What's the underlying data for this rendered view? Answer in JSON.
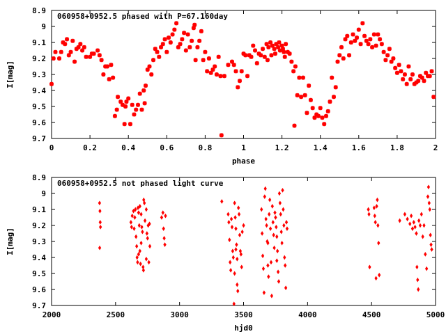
{
  "chart_data": [
    {
      "type": "scatter",
      "title": "060958+0952.5 phased with P=67.160day",
      "xlabel": "phase",
      "ylabel": "I[mag]",
      "xlim": [
        0,
        2
      ],
      "ylim": [
        8.9,
        9.7
      ],
      "y_inverted": true,
      "x_ticks": [
        "0",
        "0.2",
        "0.4",
        "0.6",
        "0.8",
        "1",
        "1.2",
        "1.4",
        "1.6",
        "1.8",
        "2"
      ],
      "y_ticks": [
        "8.9",
        "9",
        "9.1",
        "9.2",
        "9.3",
        "9.4",
        "9.5",
        "9.6",
        "9.7"
      ],
      "marker_color": "#ff0000",
      "points": [
        [
          0.0,
          9.36
        ],
        [
          0.01,
          9.2
        ],
        [
          0.02,
          9.16
        ],
        [
          0.04,
          9.2
        ],
        [
          0.05,
          9.16
        ],
        [
          0.06,
          9.1
        ],
        [
          0.07,
          9.11
        ],
        [
          0.08,
          9.08
        ],
        [
          0.09,
          9.18
        ],
        [
          0.1,
          9.16
        ],
        [
          0.11,
          9.09
        ],
        [
          0.12,
          9.22
        ],
        [
          0.13,
          9.14
        ],
        [
          0.14,
          9.13
        ],
        [
          0.15,
          9.11
        ],
        [
          0.16,
          9.15
        ],
        [
          0.17,
          9.13
        ],
        [
          0.18,
          9.19
        ],
        [
          0.2,
          9.19
        ],
        [
          0.21,
          9.17
        ],
        [
          0.22,
          9.17
        ],
        [
          0.24,
          9.15
        ],
        [
          0.25,
          9.18
        ],
        [
          0.26,
          9.21
        ],
        [
          0.27,
          9.3
        ],
        [
          0.28,
          9.25
        ],
        [
          0.29,
          9.25
        ],
        [
          0.3,
          9.33
        ],
        [
          0.31,
          9.24
        ],
        [
          0.32,
          9.32
        ],
        [
          0.33,
          9.56
        ],
        [
          0.34,
          9.52
        ],
        [
          0.345,
          9.44
        ],
        [
          0.36,
          9.47
        ],
        [
          0.37,
          9.49
        ],
        [
          0.38,
          9.61
        ],
        [
          0.385,
          9.5
        ],
        [
          0.39,
          9.47
        ],
        [
          0.4,
          9.45
        ],
        [
          0.41,
          9.61
        ],
        [
          0.42,
          9.49
        ],
        [
          0.43,
          9.55
        ],
        [
          0.44,
          9.52
        ],
        [
          0.45,
          9.49
        ],
        [
          0.46,
          9.42
        ],
        [
          0.47,
          9.52
        ],
        [
          0.48,
          9.4
        ],
        [
          0.485,
          9.48
        ],
        [
          0.49,
          9.37
        ],
        [
          0.5,
          9.27
        ],
        [
          0.51,
          9.25
        ],
        [
          0.52,
          9.3
        ],
        [
          0.53,
          9.21
        ],
        [
          0.54,
          9.14
        ],
        [
          0.55,
          9.16
        ],
        [
          0.56,
          9.19
        ],
        [
          0.57,
          9.13
        ],
        [
          0.58,
          9.11
        ],
        [
          0.59,
          9.08
        ],
        [
          0.6,
          9.16
        ],
        [
          0.61,
          9.07
        ],
        [
          0.62,
          9.1
        ],
        [
          0.63,
          9.05
        ],
        [
          0.64,
          9.02
        ],
        [
          0.65,
          8.98
        ],
        [
          0.66,
          9.13
        ],
        [
          0.67,
          9.11
        ],
        [
          0.68,
          9.08
        ],
        [
          0.69,
          9.04
        ],
        [
          0.7,
          9.15
        ],
        [
          0.71,
          9.05
        ],
        [
          0.72,
          9.13
        ],
        [
          0.73,
          9.09
        ],
        [
          0.74,
          9.01
        ],
        [
          0.745,
          8.99
        ],
        [
          0.75,
          9.21
        ],
        [
          0.76,
          9.13
        ],
        [
          0.77,
          9.09
        ],
        [
          0.78,
          9.03
        ],
        [
          0.79,
          9.21
        ],
        [
          0.8,
          9.16
        ],
        [
          0.81,
          9.28
        ],
        [
          0.82,
          9.2
        ],
        [
          0.83,
          9.29
        ],
        [
          0.84,
          9.27
        ],
        [
          0.85,
          9.25
        ],
        [
          0.86,
          9.3
        ],
        [
          0.87,
          9.19
        ],
        [
          0.88,
          9.31
        ],
        [
          0.885,
          9.68
        ],
        [
          0.9,
          9.31
        ],
        [
          0.92,
          9.24
        ],
        [
          0.94,
          9.22
        ],
        [
          0.95,
          9.24
        ],
        [
          0.96,
          9.28
        ],
        [
          0.97,
          9.38
        ],
        [
          0.98,
          9.34
        ],
        [
          0.99,
          9.28
        ],
        [
          1.0,
          9.17
        ],
        [
          1.01,
          9.18
        ],
        [
          1.02,
          9.31
        ],
        [
          1.03,
          9.18
        ],
        [
          1.04,
          9.19
        ],
        [
          1.05,
          9.12
        ],
        [
          1.06,
          9.15
        ],
        [
          1.07,
          9.23
        ],
        [
          1.08,
          9.17
        ],
        [
          1.09,
          9.18
        ],
        [
          1.1,
          9.14
        ],
        [
          1.11,
          9.19
        ],
        [
          1.12,
          9.11
        ],
        [
          1.13,
          9.13
        ],
        [
          1.14,
          9.1
        ],
        [
          1.15,
          9.12
        ],
        [
          1.16,
          9.14
        ],
        [
          1.17,
          9.11
        ],
        [
          1.18,
          9.13
        ],
        [
          1.19,
          9.15
        ],
        [
          1.2,
          9.12
        ],
        [
          1.21,
          9.16
        ],
        [
          1.125,
          9.21
        ],
        [
          1.145,
          9.18
        ],
        [
          1.165,
          9.17
        ],
        [
          1.185,
          9.1
        ],
        [
          1.205,
          9.14
        ],
        [
          1.215,
          9.19
        ],
        [
          1.22,
          9.11
        ],
        [
          1.23,
          9.16
        ],
        [
          1.24,
          9.17
        ],
        [
          1.25,
          9.22
        ],
        [
          1.26,
          9.28
        ],
        [
          1.265,
          9.62
        ],
        [
          1.27,
          9.25
        ],
        [
          1.28,
          9.43
        ],
        [
          1.29,
          9.32
        ],
        [
          1.3,
          9.44
        ],
        [
          1.31,
          9.32
        ],
        [
          1.32,
          9.43
        ],
        [
          1.33,
          9.54
        ],
        [
          1.34,
          9.37
        ],
        [
          1.35,
          9.46
        ],
        [
          1.36,
          9.51
        ],
        [
          1.37,
          9.57
        ],
        [
          1.38,
          9.55
        ],
        [
          1.39,
          9.56
        ],
        [
          1.4,
          9.51
        ],
        [
          1.41,
          9.57
        ],
        [
          1.42,
          9.61
        ],
        [
          1.43,
          9.56
        ],
        [
          1.44,
          9.53
        ],
        [
          1.45,
          9.47
        ],
        [
          1.46,
          9.32
        ],
        [
          1.47,
          9.44
        ],
        [
          1.48,
          9.38
        ],
        [
          1.49,
          9.22
        ],
        [
          1.5,
          9.18
        ],
        [
          1.51,
          9.13
        ],
        [
          1.52,
          9.2
        ],
        [
          1.53,
          9.08
        ],
        [
          1.54,
          9.06
        ],
        [
          1.55,
          9.18
        ],
        [
          1.56,
          9.1
        ],
        [
          1.57,
          9.05
        ],
        [
          1.58,
          9.09
        ],
        [
          1.59,
          9.07
        ],
        [
          1.6,
          9.02
        ],
        [
          1.61,
          9.11
        ],
        [
          1.62,
          8.98
        ],
        [
          1.63,
          9.06
        ],
        [
          1.64,
          9.09
        ],
        [
          1.65,
          9.11
        ],
        [
          1.66,
          9.08
        ],
        [
          1.67,
          9.13
        ],
        [
          1.68,
          9.05
        ],
        [
          1.69,
          9.12
        ],
        [
          1.7,
          9.05
        ],
        [
          1.71,
          9.08
        ],
        [
          1.72,
          9.11
        ],
        [
          1.73,
          9.16
        ],
        [
          1.74,
          9.21
        ],
        [
          1.75,
          9.18
        ],
        [
          1.76,
          9.14
        ],
        [
          1.77,
          9.22
        ],
        [
          1.78,
          9.2
        ],
        [
          1.79,
          9.26
        ],
        [
          1.8,
          9.29
        ],
        [
          1.81,
          9.24
        ],
        [
          1.82,
          9.28
        ],
        [
          1.83,
          9.33
        ],
        [
          1.84,
          9.3
        ],
        [
          1.85,
          9.36
        ],
        [
          1.86,
          9.25
        ],
        [
          1.87,
          9.33
        ],
        [
          1.88,
          9.3
        ],
        [
          1.89,
          9.36
        ],
        [
          1.9,
          9.35
        ],
        [
          1.91,
          9.34
        ],
        [
          1.92,
          9.31
        ],
        [
          1.93,
          9.32
        ],
        [
          1.94,
          9.34
        ],
        [
          1.95,
          9.29
        ],
        [
          1.96,
          9.31
        ],
        [
          1.97,
          9.31
        ],
        [
          1.98,
          9.28
        ],
        [
          1.99,
          9.44
        ]
      ]
    },
    {
      "type": "scatter",
      "title": "060958+0952.5 not phased light curve",
      "xlabel": "hjd0",
      "ylabel": "I[mag]",
      "xlim": [
        2000,
        5000
      ],
      "ylim": [
        8.9,
        9.7
      ],
      "y_inverted": true,
      "x_ticks": [
        "2000",
        "2500",
        "3000",
        "3500",
        "4000",
        "4500",
        "5000"
      ],
      "y_ticks": [
        "8.9",
        "9",
        "9.1",
        "9.2",
        "9.3",
        "9.4",
        "9.5",
        "9.6",
        "9.7"
      ],
      "marker_color": "#ff0000",
      "points": [
        [
          2375,
          9.06
        ],
        [
          2378,
          9.11
        ],
        [
          2380,
          9.18
        ],
        [
          2382,
          9.21
        ],
        [
          2376,
          9.34
        ],
        [
          2620,
          9.18
        ],
        [
          2625,
          9.21
        ],
        [
          2630,
          9.14
        ],
        [
          2640,
          9.11
        ],
        [
          2645,
          9.22
        ],
        [
          2650,
          9.15
        ],
        [
          2655,
          9.1
        ],
        [
          2660,
          9.27
        ],
        [
          2665,
          9.33
        ],
        [
          2668,
          9.4
        ],
        [
          2672,
          9.43
        ],
        [
          2675,
          9.09
        ],
        [
          2680,
          9.12
        ],
        [
          2685,
          9.2
        ],
        [
          2690,
          9.36
        ],
        [
          2695,
          9.44
        ],
        [
          2700,
          9.13
        ],
        [
          2705,
          9.21
        ],
        [
          2710,
          9.24
        ],
        [
          2715,
          9.46
        ],
        [
          2718,
          9.48
        ],
        [
          2720,
          9.04
        ],
        [
          2725,
          9.06
        ],
        [
          2730,
          9.17
        ],
        [
          2740,
          9.1
        ],
        [
          2745,
          9.25
        ],
        [
          2750,
          9.28
        ],
        [
          2755,
          9.2
        ],
        [
          2760,
          9.43
        ],
        [
          2765,
          9.19
        ],
        [
          2768,
          9.33
        ],
        [
          2680,
          9.38
        ],
        [
          2690,
          9.08
        ],
        [
          2700,
          9.31
        ],
        [
          2740,
          9.41
        ],
        [
          2860,
          9.15
        ],
        [
          2870,
          9.12
        ],
        [
          2875,
          9.22
        ],
        [
          2880,
          9.28
        ],
        [
          2885,
          9.32
        ],
        [
          2890,
          9.14
        ],
        [
          3330,
          9.05
        ],
        [
          3380,
          9.13
        ],
        [
          3385,
          9.18
        ],
        [
          3390,
          9.29
        ],
        [
          3395,
          9.43
        ],
        [
          3400,
          9.48
        ],
        [
          3405,
          9.16
        ],
        [
          3410,
          9.21
        ],
        [
          3415,
          9.36
        ],
        [
          3420,
          9.4
        ],
        [
          3425,
          9.69
        ],
        [
          3430,
          9.06
        ],
        [
          3435,
          9.15
        ],
        [
          3440,
          9.22
        ],
        [
          3445,
          9.32
        ],
        [
          3450,
          9.57
        ],
        [
          3455,
          9.61
        ],
        [
          3460,
          9.09
        ],
        [
          3465,
          9.13
        ],
        [
          3470,
          9.26
        ],
        [
          3475,
          9.36
        ],
        [
          3480,
          9.38
        ],
        [
          3485,
          9.46
        ],
        [
          3490,
          9.24
        ],
        [
          3500,
          9.2
        ],
        [
          3430,
          9.5
        ],
        [
          3440,
          9.35
        ],
        [
          3450,
          9.41
        ],
        [
          3640,
          9.1
        ],
        [
          3645,
          9.25
        ],
        [
          3650,
          9.39
        ],
        [
          3655,
          9.47
        ],
        [
          3660,
          9.62
        ],
        [
          3665,
          9.02
        ],
        [
          3670,
          8.97
        ],
        [
          3675,
          9.16
        ],
        [
          3680,
          9.2
        ],
        [
          3685,
          9.3
        ],
        [
          3690,
          9.45
        ],
        [
          3695,
          9.52
        ],
        [
          3700,
          9.13
        ],
        [
          3705,
          9.04
        ],
        [
          3710,
          9.22
        ],
        [
          3715,
          9.43
        ],
        [
          3720,
          9.64
        ],
        [
          3725,
          9.08
        ],
        [
          3730,
          9.18
        ],
        [
          3735,
          9.26
        ],
        [
          3740,
          9.34
        ],
        [
          3745,
          9.12
        ],
        [
          3750,
          9.15
        ],
        [
          3755,
          9.21
        ],
        [
          3760,
          9.27
        ],
        [
          3765,
          9.36
        ],
        [
          3770,
          9.49
        ],
        [
          3775,
          9.55
        ],
        [
          3780,
          9.0
        ],
        [
          3785,
          9.06
        ],
        [
          3790,
          9.13
        ],
        [
          3795,
          9.24
        ],
        [
          3800,
          9.31
        ],
        [
          3805,
          8.98
        ],
        [
          3810,
          9.1
        ],
        [
          3815,
          9.2
        ],
        [
          3820,
          9.4
        ],
        [
          3825,
          9.45
        ],
        [
          3830,
          9.59
        ],
        [
          3835,
          9.18
        ],
        [
          3840,
          9.22
        ],
        [
          3690,
          9.31
        ],
        [
          3760,
          9.42
        ],
        [
          4475,
          9.1
        ],
        [
          4480,
          9.13
        ],
        [
          4485,
          9.46
        ],
        [
          4520,
          9.09
        ],
        [
          4525,
          9.14
        ],
        [
          4530,
          9.18
        ],
        [
          4535,
          9.53
        ],
        [
          4540,
          9.08
        ],
        [
          4545,
          9.04
        ],
        [
          4550,
          9.2
        ],
        [
          4555,
          9.31
        ],
        [
          4560,
          9.51
        ],
        [
          4720,
          9.17
        ],
        [
          4760,
          9.13
        ],
        [
          4780,
          9.16
        ],
        [
          4800,
          9.19
        ],
        [
          4810,
          9.14
        ],
        [
          4820,
          9.22
        ],
        [
          4830,
          9.18
        ],
        [
          4840,
          9.21
        ],
        [
          4850,
          9.25
        ],
        [
          4855,
          9.46
        ],
        [
          4860,
          9.54
        ],
        [
          4865,
          9.6
        ],
        [
          4870,
          9.17
        ],
        [
          4880,
          9.2
        ],
        [
          4890,
          9.13
        ],
        [
          4900,
          9.27
        ],
        [
          4910,
          9.2
        ],
        [
          4920,
          9.38
        ],
        [
          4930,
          9.47
        ],
        [
          4940,
          9.02
        ],
        [
          4945,
          8.96
        ],
        [
          4950,
          9.06
        ],
        [
          4955,
          9.1
        ],
        [
          4960,
          9.26
        ],
        [
          4965,
          9.32
        ],
        [
          4970,
          9.35
        ]
      ]
    }
  ]
}
